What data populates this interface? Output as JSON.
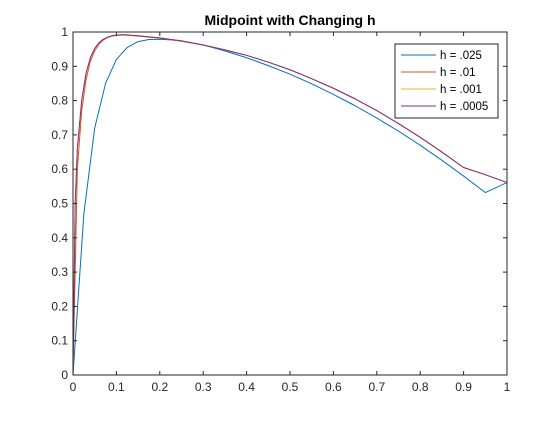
{
  "chart_data": {
    "type": "line",
    "title": "Midpoint with Changing h",
    "xlabel": "",
    "ylabel": "",
    "xlim": [
      0,
      1
    ],
    "ylim": [
      0,
      1
    ],
    "x_ticks": [
      0,
      0.1,
      0.2,
      0.3,
      0.4,
      0.5,
      0.6,
      0.7,
      0.8,
      0.9,
      1
    ],
    "x_tick_labels": [
      "0",
      "0.1",
      "0.2",
      "0.3",
      "0.4",
      "0.5",
      "0.6",
      "0.7",
      "0.8",
      "0.9",
      "1"
    ],
    "y_ticks": [
      0,
      0.1,
      0.2,
      0.3,
      0.4,
      0.5,
      0.6,
      0.7,
      0.8,
      0.9,
      1
    ],
    "y_tick_labels": [
      "0",
      "0.1",
      "0.2",
      "0.3",
      "0.4",
      "0.5",
      "0.6",
      "0.7",
      "0.8",
      "0.9",
      "1"
    ],
    "grid": false,
    "legend_position": "top-right",
    "series": [
      {
        "name": "h = .025",
        "color": "#0072BD",
        "x": [
          0,
          0.025,
          0.05,
          0.075,
          0.1,
          0.125,
          0.15,
          0.175,
          0.2,
          0.225,
          0.25,
          0.3,
          0.35,
          0.4,
          0.45,
          0.5,
          0.55,
          0.6,
          0.65,
          0.7,
          0.75,
          0.8,
          0.85,
          0.9,
          0.95,
          1
        ],
        "y": [
          0,
          0.47,
          0.72,
          0.85,
          0.92,
          0.955,
          0.972,
          0.978,
          0.979,
          0.977,
          0.974,
          0.962,
          0.945,
          0.925,
          0.902,
          0.877,
          0.849,
          0.818,
          0.785,
          0.749,
          0.711,
          0.67,
          0.626,
          0.58,
          0.532,
          0.561
        ]
      },
      {
        "name": "h = .01",
        "color": "#D95319",
        "x": [
          0,
          0.01,
          0.02,
          0.03,
          0.04,
          0.05,
          0.06,
          0.07,
          0.08,
          0.09,
          0.1,
          0.11,
          0.12,
          0.13,
          0.15,
          0.2,
          0.25,
          0.3,
          0.35,
          0.4,
          0.45,
          0.5,
          0.55,
          0.6,
          0.65,
          0.7,
          0.75,
          0.8,
          0.85,
          0.9,
          0.95,
          1
        ],
        "y": [
          0,
          0.6,
          0.77,
          0.86,
          0.915,
          0.945,
          0.965,
          0.977,
          0.984,
          0.988,
          0.99,
          0.991,
          0.991,
          0.99,
          0.988,
          0.982,
          0.973,
          0.962,
          0.948,
          0.932,
          0.912,
          0.89,
          0.864,
          0.836,
          0.805,
          0.771,
          0.733,
          0.693,
          0.65,
          0.605,
          0.584,
          0.561
        ]
      },
      {
        "name": "h = .001",
        "color": "#EDB120",
        "x": [
          0,
          0.005,
          0.01,
          0.02,
          0.03,
          0.04,
          0.05,
          0.06,
          0.07,
          0.08,
          0.09,
          0.1,
          0.11,
          0.12,
          0.13,
          0.15,
          0.2,
          0.25,
          0.3,
          0.35,
          0.4,
          0.45,
          0.5,
          0.55,
          0.6,
          0.65,
          0.7,
          0.75,
          0.8,
          0.85,
          0.9,
          0.95,
          1
        ],
        "y": [
          0,
          0.5,
          0.66,
          0.8,
          0.88,
          0.925,
          0.952,
          0.969,
          0.979,
          0.985,
          0.989,
          0.991,
          0.992,
          0.992,
          0.991,
          0.989,
          0.983,
          0.974,
          0.962,
          0.948,
          0.932,
          0.912,
          0.89,
          0.864,
          0.836,
          0.805,
          0.771,
          0.733,
          0.693,
          0.65,
          0.605,
          0.584,
          0.561
        ]
      },
      {
        "name": "h = .0005",
        "color": "#7E2F8E",
        "x": [
          0,
          0.005,
          0.01,
          0.02,
          0.03,
          0.04,
          0.05,
          0.06,
          0.07,
          0.08,
          0.09,
          0.1,
          0.11,
          0.12,
          0.13,
          0.15,
          0.2,
          0.25,
          0.3,
          0.35,
          0.4,
          0.45,
          0.5,
          0.55,
          0.6,
          0.65,
          0.7,
          0.75,
          0.8,
          0.85,
          0.9,
          0.95,
          1
        ],
        "y": [
          0,
          0.5,
          0.66,
          0.8,
          0.88,
          0.925,
          0.952,
          0.969,
          0.979,
          0.985,
          0.989,
          0.991,
          0.992,
          0.992,
          0.991,
          0.989,
          0.983,
          0.974,
          0.962,
          0.948,
          0.932,
          0.912,
          0.89,
          0.864,
          0.836,
          0.805,
          0.771,
          0.733,
          0.693,
          0.65,
          0.605,
          0.584,
          0.561
        ]
      }
    ]
  }
}
